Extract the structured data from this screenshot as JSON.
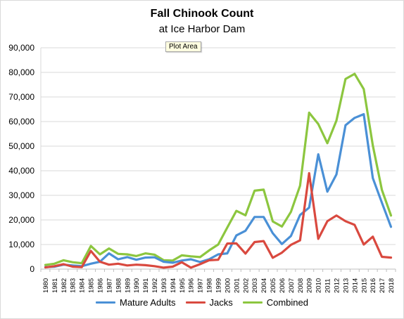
{
  "tooltip": "Plot Area",
  "chart_data": {
    "type": "line",
    "title": "Fall Chinook Count",
    "subtitle": "at Ice Harbor Dam",
    "ylim": [
      0,
      90000
    ],
    "yticks": [
      0,
      10000,
      20000,
      30000,
      40000,
      50000,
      60000,
      70000,
      80000,
      90000
    ],
    "ytick_labels": [
      "0",
      "10,000",
      "20,000",
      "30,000",
      "40,000",
      "50,000",
      "60,000",
      "70,000",
      "80,000",
      "90,000"
    ],
    "grid": true,
    "legend": "bottom",
    "categories": [
      "1980",
      "1981",
      "1982",
      "1983",
      "1984",
      "1985",
      "1986",
      "1987",
      "1988",
      "1989",
      "1990",
      "1991",
      "1992",
      "1993",
      "1994",
      "1995",
      "1996",
      "1997",
      "1998",
      "1999",
      "2000",
      "2001",
      "2002",
      "2003",
      "2004",
      "2005",
      "2006",
      "2007",
      "2008",
      "2009",
      "2010",
      "2011",
      "2012",
      "2013",
      "2014",
      "2015",
      "2016",
      "2017",
      "2018"
    ],
    "series": [
      {
        "name": "Mature Adults",
        "color": "#4a90d6",
        "values": [
          800,
          1000,
          1800,
          1500,
          1200,
          2200,
          3000,
          6400,
          4000,
          4900,
          3800,
          4700,
          4800,
          3000,
          2600,
          3500,
          4000,
          2900,
          4000,
          6000,
          6400,
          13700,
          15600,
          21200,
          21200,
          14600,
          10200,
          13500,
          22000,
          25000,
          46700,
          31500,
          38500,
          58500,
          61500,
          63000,
          37000,
          27000,
          17200
        ]
      },
      {
        "name": "Jacks",
        "color": "#d9493f",
        "values": [
          700,
          1200,
          2000,
          1000,
          800,
          7400,
          3000,
          1800,
          2200,
          1500,
          1800,
          1600,
          1200,
          600,
          1000,
          2800,
          600,
          2000,
          3600,
          3800,
          10400,
          10500,
          6300,
          11000,
          11400,
          4600,
          6700,
          9900,
          11700,
          39000,
          12300,
          19500,
          21800,
          19500,
          18000,
          10000,
          13200,
          5000,
          4700
        ]
      },
      {
        "name": "Combined",
        "color": "#8cc63f",
        "values": [
          1700,
          2200,
          3600,
          2800,
          2400,
          9400,
          6000,
          8400,
          6200,
          6000,
          5300,
          6400,
          5900,
          3600,
          3500,
          5600,
          5200,
          4900,
          7600,
          10000,
          16900,
          23700,
          21900,
          31900,
          32300,
          19400,
          17300,
          23300,
          33900,
          63600,
          59000,
          51200,
          60400,
          77300,
          79400,
          73200,
          50300,
          32200,
          21800
        ]
      }
    ]
  }
}
